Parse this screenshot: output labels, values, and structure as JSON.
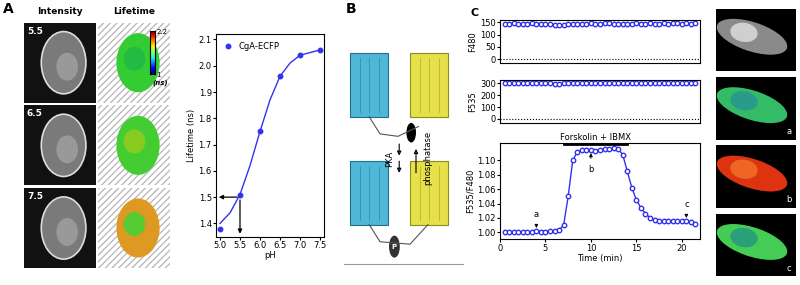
{
  "labels": {
    "panel_A": "A",
    "panel_B": "B",
    "panel_C": "C"
  },
  "images_A": {
    "columns": [
      "Intensity",
      "Lifetime"
    ],
    "rows": [
      "5.5",
      "6.5",
      "7.5"
    ],
    "colorbar": {
      "range": [
        1,
        2.2
      ],
      "ticks": [
        2.2,
        1
      ],
      "unit": "(ns)"
    }
  },
  "diagram_B": {
    "enzymes": [
      "PKA",
      "phosphatase"
    ],
    "phospho": "P"
  },
  "images_C": {
    "labels": [
      "a",
      "b",
      "c"
    ]
  },
  "chart_data": [
    {
      "type": "line",
      "x_label": "pH",
      "y_label": "Lifetime (ns)",
      "xlim": [
        4.9,
        7.6
      ],
      "xticks": [
        5.0,
        5.5,
        6.0,
        6.5,
        7.0,
        7.5
      ],
      "ylim": [
        1.35,
        2.12
      ],
      "yticks": [
        1.4,
        1.5,
        1.6,
        1.7,
        1.8,
        1.9,
        2.0,
        2.1
      ],
      "legend": "upper left",
      "reference_point": {
        "x": 5.5,
        "y": 1.5
      },
      "series": [
        {
          "name": "CgA-ECFP",
          "color": "#3333ee",
          "marker": "circle",
          "line_style": "none",
          "x": [
            5.0,
            5.5,
            6.0,
            6.5,
            7.0,
            7.5
          ],
          "values": [
            1.38,
            1.51,
            1.75,
            1.96,
            2.04,
            2.06
          ]
        },
        {
          "color": "#3333ee",
          "marker": "none",
          "line_style": "solid",
          "x": [
            5.0,
            5.25,
            5.5,
            5.75,
            6.0,
            6.25,
            6.5,
            6.75,
            7.0,
            7.25,
            7.5
          ],
          "values": [
            1.4,
            1.44,
            1.51,
            1.62,
            1.75,
            1.87,
            1.96,
            2.01,
            2.04,
            2.05,
            2.06
          ]
        }
      ]
    },
    {
      "type": "line",
      "y_label": "F480",
      "xlim": [
        0,
        22
      ],
      "ylim": [
        -15,
        160
      ],
      "yticks": [
        0,
        50,
        100,
        150
      ],
      "tick_labels": "y",
      "reference_line": 0,
      "series": [
        {
          "color": "#3333ee",
          "marker": "open_circle",
          "line_style": "solid",
          "x": [
            0.5,
            1.0,
            1.5,
            2.0,
            2.5,
            3.0,
            3.5,
            4.0,
            4.5,
            5.0,
            5.5,
            6.0,
            6.5,
            7.0,
            7.5,
            8.0,
            8.5,
            9.0,
            9.5,
            10.0,
            10.5,
            11.0,
            11.5,
            12.0,
            12.5,
            13.0,
            13.5,
            14.0,
            14.5,
            15.0,
            15.5,
            16.0,
            16.5,
            17.0,
            17.5,
            18.0,
            18.5,
            19.0,
            19.5,
            20.0,
            20.5,
            21.0,
            21.5
          ],
          "values": [
            145,
            145,
            146,
            145,
            145,
            145,
            146,
            145,
            145,
            144,
            143,
            140,
            139,
            141,
            143,
            144,
            145,
            145,
            145,
            146,
            145,
            145,
            146,
            146,
            145,
            145,
            145,
            145,
            145,
            146,
            145,
            145,
            146,
            145,
            145,
            146,
            145,
            146,
            146,
            145,
            146,
            145,
            146
          ]
        }
      ]
    },
    {
      "type": "line",
      "y_label": "F535",
      "xlim": [
        0,
        22
      ],
      "ylim": [
        -30,
        330
      ],
      "yticks": [
        0,
        100,
        200,
        300
      ],
      "tick_labels": "y",
      "reference_line": 0,
      "series": [
        {
          "color": "#3333ee",
          "marker": "open_circle",
          "line_style": "solid",
          "x": [
            0.5,
            1.0,
            1.5,
            2.0,
            2.5,
            3.0,
            3.5,
            4.0,
            4.5,
            5.0,
            5.5,
            6.0,
            6.5,
            7.0,
            7.5,
            8.0,
            8.5,
            9.0,
            9.5,
            10.0,
            10.5,
            11.0,
            11.5,
            12.0,
            12.5,
            13.0,
            13.5,
            14.0,
            14.5,
            15.0,
            15.5,
            16.0,
            16.5,
            17.0,
            17.5,
            18.0,
            18.5,
            19.0,
            19.5,
            20.0,
            20.5,
            21.0,
            21.5
          ],
          "values": [
            300,
            300,
            301,
            300,
            300,
            300,
            300,
            299,
            300,
            299,
            299,
            298,
            298,
            299,
            300,
            302,
            303,
            303,
            304,
            303,
            303,
            303,
            304,
            303,
            303,
            302,
            301,
            300,
            300,
            301,
            301,
            300,
            300,
            301,
            300,
            301,
            300,
            301,
            301,
            300,
            301,
            300,
            300
          ]
        }
      ]
    },
    {
      "type": "line",
      "x_label": "Time (min)",
      "y_label": "F535/F480",
      "xlim": [
        0,
        22
      ],
      "xticks": [
        0,
        5,
        10,
        15,
        20
      ],
      "ylim": [
        0.99,
        1.125
      ],
      "yticks": [
        {
          "value": 1.0,
          "label": "1.00"
        },
        {
          "value": 1.02,
          "label": "1.02"
        },
        {
          "value": 1.04,
          "label": "1.04"
        },
        {
          "value": 1.06,
          "label": "1.06"
        },
        {
          "value": 1.08,
          "label": "1.08"
        },
        {
          "value": 1.1,
          "label": "1.10"
        }
      ],
      "treatment": {
        "label": "Forskolin + IBMX",
        "start": 7,
        "end": 14
      },
      "points": [
        {
          "label": "a",
          "x": 4
        },
        {
          "label": "b",
          "x": 10
        },
        {
          "label": "c",
          "x": 20.5
        }
      ],
      "series": [
        {
          "color": "#3333ee",
          "marker": "open_circle",
          "line_style": "solid",
          "x": [
            0.5,
            1.0,
            1.5,
            2.0,
            2.5,
            3.0,
            3.5,
            4.0,
            4.5,
            5.0,
            5.5,
            6.0,
            6.5,
            7.0,
            7.5,
            8.0,
            8.5,
            9.0,
            9.5,
            10.0,
            10.5,
            11.0,
            11.5,
            12.0,
            12.5,
            13.0,
            13.5,
            14.0,
            14.5,
            15.0,
            15.5,
            16.0,
            16.5,
            17.0,
            17.5,
            18.0,
            18.5,
            19.0,
            19.5,
            20.0,
            20.5,
            21.0,
            21.5
          ],
          "values": [
            1.0,
            1.001,
            1.0,
            1.001,
            1.0,
            1.001,
            1.0,
            1.002,
            1.001,
            1.001,
            1.002,
            1.002,
            1.003,
            1.01,
            1.05,
            1.1,
            1.112,
            1.114,
            1.115,
            1.114,
            1.113,
            1.115,
            1.116,
            1.116,
            1.117,
            1.116,
            1.108,
            1.085,
            1.062,
            1.045,
            1.034,
            1.026,
            1.02,
            1.017,
            1.016,
            1.015,
            1.015,
            1.015,
            1.016,
            1.015,
            1.016,
            1.014,
            1.012
          ]
        }
      ]
    }
  ]
}
